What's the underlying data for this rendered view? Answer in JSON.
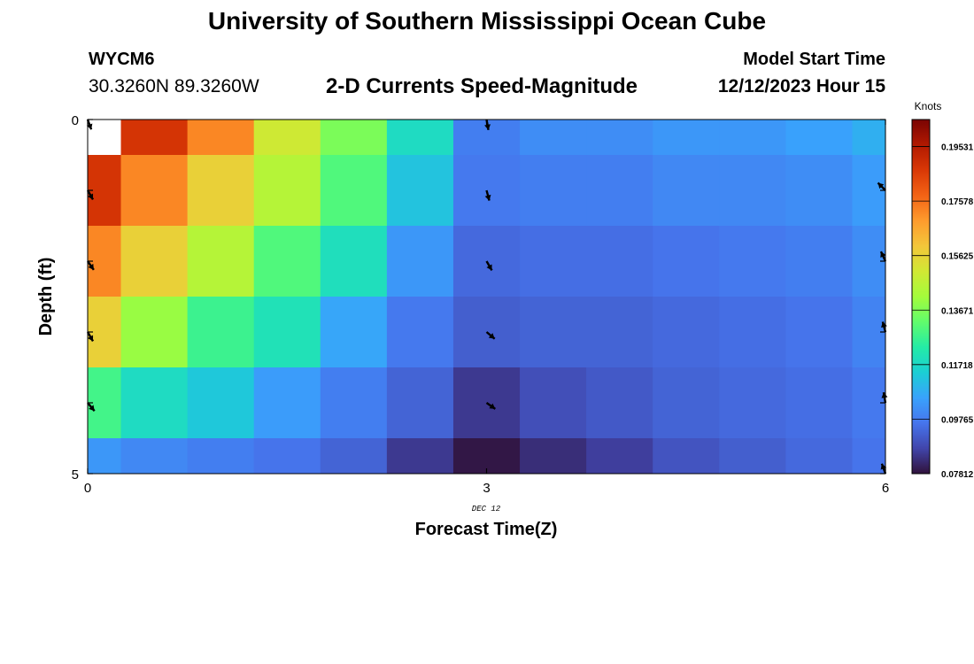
{
  "header": {
    "title": "University of Southern Mississippi Ocean Cube",
    "station_id": "WYCM6",
    "coordinates": "30.3260N  89.3260W",
    "subtitle": "2-D Currents Speed-Magnitude",
    "model_start_label": "Model Start Time",
    "model_start_value": "12/12/2023 Hour 15"
  },
  "footer": {
    "title": "University of Southern Mississippi Ocean Cube"
  },
  "chart_data": {
    "type": "heatmap",
    "xlabel": "Forecast Time(Z)",
    "ylabel": "Depth (ft)",
    "x_ticks": [
      "0",
      "3",
      "6"
    ],
    "y_ticks": [
      "0",
      "5"
    ],
    "x_date_label": "DEC 12",
    "xlim": [
      0,
      6
    ],
    "ylim": [
      0,
      5
    ],
    "colorbar": {
      "label": "Knots",
      "min": 0.0781,
      "max": 0.205,
      "ticks": [
        "0.19531",
        "0.17578",
        "0.15625",
        "0.13671",
        "0.11718",
        "0.09765",
        "0.07812"
      ],
      "colormap": [
        "#30123b",
        "#4145ab",
        "#4675ed",
        "#39a2fc",
        "#1bcfd4",
        "#24eca6",
        "#61fc6c",
        "#a4fc3b",
        "#d1e834",
        "#f3c63a",
        "#fe9b2d",
        "#f36315",
        "#d93806",
        "#b11901",
        "#7a0403"
      ]
    },
    "x_centers": [
      0,
      0.5,
      1,
      1.5,
      2,
      2.5,
      3,
      3.5,
      4,
      4.5,
      5,
      5.5,
      6
    ],
    "y_centers": [
      0,
      1,
      2,
      3,
      4,
      5
    ],
    "speed_knots": [
      [
        null,
        0.188,
        0.172,
        0.15,
        0.136,
        0.118,
        0.098,
        0.101,
        0.101,
        0.103,
        0.103,
        0.105,
        0.108
      ],
      [
        0.188,
        0.172,
        0.157,
        0.145,
        0.13,
        0.112,
        0.097,
        0.098,
        0.098,
        0.1,
        0.1,
        0.101,
        0.104
      ],
      [
        0.172,
        0.157,
        0.145,
        0.13,
        0.119,
        0.103,
        0.094,
        0.095,
        0.095,
        0.096,
        0.097,
        0.098,
        0.101
      ],
      [
        0.157,
        0.14,
        0.127,
        0.12,
        0.106,
        0.097,
        0.092,
        0.093,
        0.093,
        0.094,
        0.095,
        0.096,
        0.099
      ],
      [
        0.128,
        0.118,
        0.113,
        0.104,
        0.098,
        0.093,
        0.085,
        0.089,
        0.091,
        0.093,
        0.094,
        0.095,
        0.097
      ],
      [
        0.103,
        0.1,
        0.098,
        0.096,
        0.093,
        0.085,
        0.079,
        0.083,
        0.086,
        0.09,
        0.092,
        0.094,
        0.096
      ]
    ],
    "vectors": [
      {
        "x": 0,
        "y": 0,
        "dir_deg": 160
      },
      {
        "x": 0,
        "y": 1,
        "dir_deg": 150
      },
      {
        "x": 0,
        "y": 2,
        "dir_deg": 145
      },
      {
        "x": 0,
        "y": 3,
        "dir_deg": 150
      },
      {
        "x": 0,
        "y": 4,
        "dir_deg": 140
      },
      {
        "x": 3,
        "y": 0,
        "dir_deg": 170
      },
      {
        "x": 3,
        "y": 1,
        "dir_deg": 165
      },
      {
        "x": 3,
        "y": 2,
        "dir_deg": 150
      },
      {
        "x": 3,
        "y": 3,
        "dir_deg": 130
      },
      {
        "x": 3,
        "y": 4,
        "dir_deg": 125
      },
      {
        "x": 6,
        "y": 1,
        "dir_deg": -45
      },
      {
        "x": 6,
        "y": 2,
        "dir_deg": -25
      },
      {
        "x": 6,
        "y": 3,
        "dir_deg": -15
      },
      {
        "x": 6,
        "y": 4,
        "dir_deg": -10
      },
      {
        "x": 6,
        "y": 5,
        "dir_deg": -20
      }
    ]
  }
}
